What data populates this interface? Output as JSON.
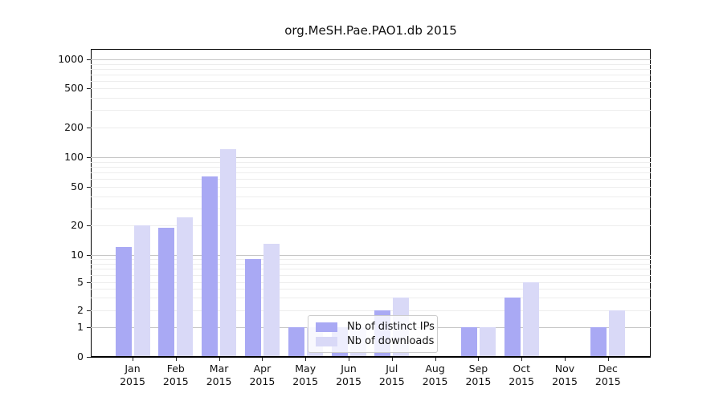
{
  "chart_data": {
    "type": "bar",
    "title": "org.MeSH.Pae.PAO1.db 2015",
    "categories": [
      "Jan 2015",
      "Feb 2015",
      "Mar 2015",
      "Apr 2015",
      "May 2015",
      "Jun 2015",
      "Jul 2015",
      "Aug 2015",
      "Sep 2015",
      "Oct 2015",
      "Nov 2015",
      "Dec 2015"
    ],
    "series": [
      {
        "name": "Nb of distinct IPs",
        "color": "#a9a9f4",
        "values": [
          12,
          19,
          64,
          9,
          1,
          1,
          2,
          0,
          1,
          3,
          0,
          1
        ]
      },
      {
        "name": "Nb of downloads",
        "color": "#d9d9f7",
        "values": [
          20,
          24,
          120,
          13,
          1,
          1,
          3,
          0,
          1,
          5,
          0,
          2
        ]
      }
    ],
    "xlabel": "",
    "ylabel": "",
    "y_ticks": [
      0,
      1,
      2,
      5,
      10,
      20,
      50,
      100,
      200,
      500,
      1000
    ],
    "ylim": [
      0,
      1000
    ],
    "y_scale": "log-like with 1-2-5 ticks and 0 baseline",
    "grid": "horizontal; light minor lines, darker lines at powers of 10",
    "legend_position": "inside plot, bottom center-left",
    "colors": {
      "major_gridline": "#c6c6c6",
      "minor_gridline": "#ededed",
      "axis": "#000000",
      "text": "#111111"
    }
  }
}
